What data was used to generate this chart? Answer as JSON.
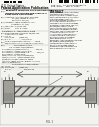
{
  "page_bg": "#f8f8f5",
  "barcode_color": "#111111",
  "diagram_bg": "#eeeeea",
  "diagram_line": "#555555",
  "left_block_color": "#999999",
  "right_block_color": "#999999",
  "center_hatch_bg": "#d8d8d0",
  "plate_color": "#bbbbb8",
  "text_dark": "#111111",
  "text_mid": "#333333",
  "text_light": "#666666",
  "divider_color": "#888888"
}
